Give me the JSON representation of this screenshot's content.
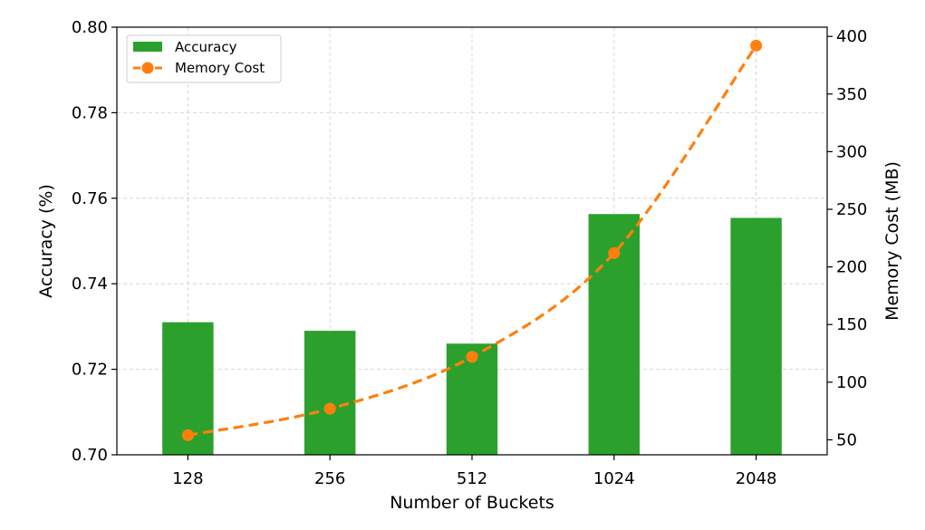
{
  "chart_data": {
    "type": "bar",
    "xlabel": "Number of Buckets",
    "categories": [
      "128",
      "256",
      "512",
      "1024",
      "2048"
    ],
    "left_axis": {
      "label": "Accuracy (%)",
      "ylim": [
        0.7,
        0.8
      ],
      "ticks": [
        0.7,
        0.72,
        0.74,
        0.76,
        0.78,
        0.8
      ],
      "tick_labels": [
        "0.70",
        "0.72",
        "0.74",
        "0.76",
        "0.78",
        "0.80"
      ]
    },
    "right_axis": {
      "label": "Memory Cost (MB)",
      "ylim": [
        37,
        408
      ],
      "ticks": [
        50,
        100,
        150,
        200,
        250,
        300,
        350,
        400
      ],
      "tick_labels": [
        "50",
        "100",
        "150",
        "200",
        "250",
        "300",
        "350",
        "400"
      ]
    },
    "series": [
      {
        "name": "Accuracy",
        "kind": "bar",
        "axis": "left",
        "color": "#2ca02c",
        "values": [
          0.731,
          0.729,
          0.726,
          0.7563,
          0.7554
        ]
      },
      {
        "name": "Memory Cost",
        "kind": "line",
        "axis": "right",
        "style": "dashed",
        "marker": "circle",
        "color": "#ff7f0e",
        "values": [
          54,
          77,
          122,
          212,
          392
        ]
      }
    ],
    "grid": true,
    "legend": "top-left"
  }
}
